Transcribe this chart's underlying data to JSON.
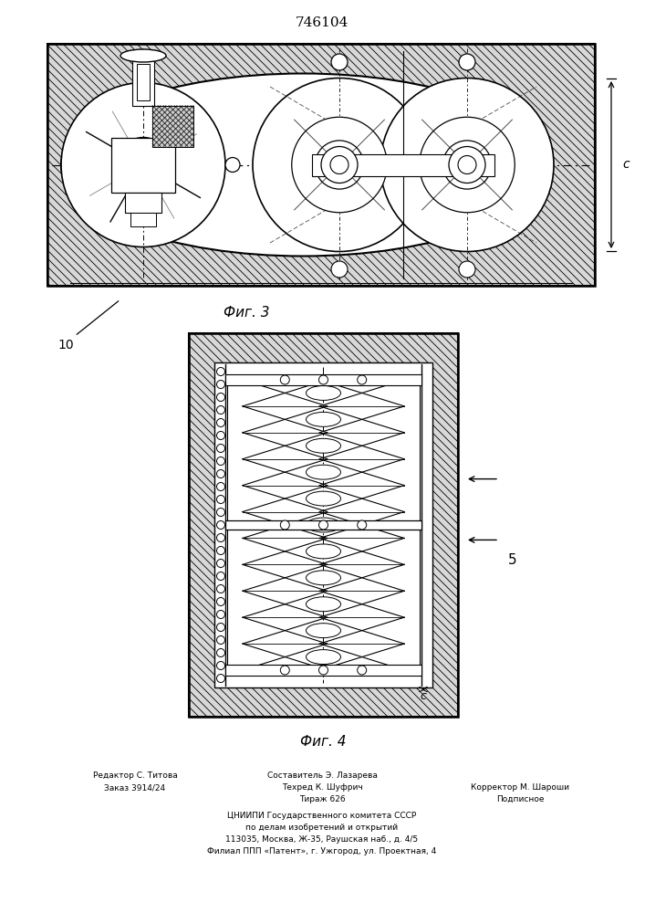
{
  "patent_number": "746104",
  "fig3_label": "Фиг. 3",
  "fig4_label": "Фиг. 4",
  "label_10": "10",
  "label_c": "c",
  "label_5": "5",
  "label_c2": "c",
  "footer_line1_left": "Редактор С. Титова",
  "footer_line2_left": "Заказ 3914/24",
  "footer_line1_center": "Составитель Э. Лазарева",
  "footer_line2_center": "Техред К. Шуфрич",
  "footer_line3_center": "Тираж 626",
  "footer_line2_right": "Корректор М. Шароши",
  "footer_line3_right": "Подписное",
  "footer_cniiipi1": "ЦНИИПИ Государственного комитета СССР",
  "footer_cniiipi2": "по делам изобретений и открытий",
  "footer_cniiipi3": "113035, Москва, Ж-35, Раушская наб., д. 4/5",
  "footer_cniiipi4": "Филиал ППП «Патент», г. Ужгород, ул. Проектная, 4",
  "bg_color": "#ffffff",
  "line_color": "#000000"
}
